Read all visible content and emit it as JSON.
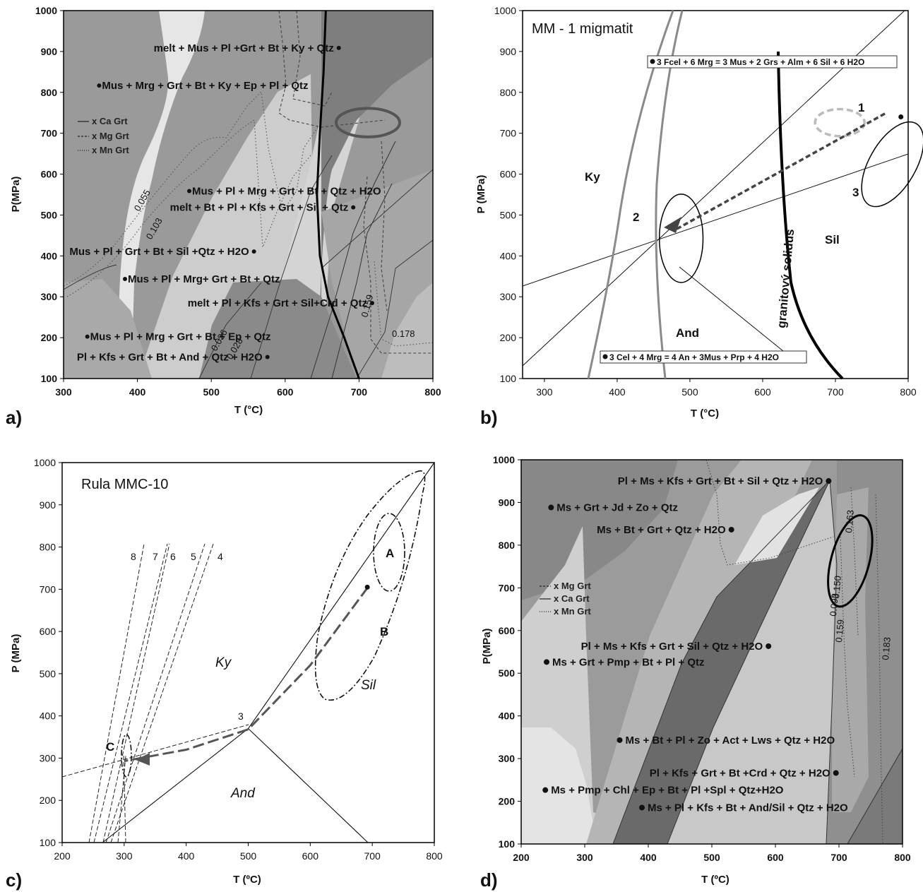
{
  "chart_data": [
    {
      "panel": "a)",
      "type": "pseudosection",
      "xlabel": "T (°C)",
      "ylabel": "P(MPa)",
      "xlim": [
        300,
        800
      ],
      "ylim": [
        100,
        1000
      ],
      "x_ticks": [
        300,
        400,
        500,
        600,
        700,
        800
      ],
      "y_ticks": [
        100,
        200,
        300,
        400,
        500,
        600,
        700,
        800,
        900,
        1000
      ],
      "legend": [
        "x Ca Grt",
        "x Mg Grt",
        "x Mn Grt"
      ],
      "annotations": [
        {
          "text": "melt + Mus + Pl +Grt + Bt + Ky + Qtz",
          "T": 422,
          "P": 900,
          "dot": "right"
        },
        {
          "text": "Mus + Mrg + Grt + Bt + Ky + Ep + Pl + Qtz",
          "T": 352,
          "P": 808,
          "dot": "left"
        },
        {
          "text": "Mus + Pl + Mrg + Grt + Bt + Qtz + H2O",
          "T": 474,
          "P": 550,
          "dot": "left"
        },
        {
          "text": "melt + Bt + Pl + Kfs + Grt + Sil + Qtz",
          "T": 444,
          "P": 510,
          "dot": "right"
        },
        {
          "text": "Mus + Pl + Grt + Bt + Sil +Qtz + H2O",
          "T": 308,
          "P": 402,
          "dot": "right"
        },
        {
          "text": "Mus + Pl + Mrg+ Grt + Bt + Qtz",
          "T": 387,
          "P": 335,
          "dot": "left"
        },
        {
          "text": "melt + Pl + Kfs + Grt + Sil+Crd + Qtz",
          "T": 468,
          "P": 276,
          "dot": "right"
        },
        {
          "text": "Mus + Pl + Mrg + Grt + Bt + Ep + Qtz",
          "T": 336,
          "P": 194,
          "dot": "left"
        },
        {
          "text": "Pl + Kfs + Grt + Bt + And + Qtz + H2O",
          "T": 318,
          "P": 144,
          "dot": "right"
        }
      ],
      "isopleth_labels": [
        "0.055",
        "0.103",
        "0.159",
        "0.178",
        "0.036",
        "0.028"
      ],
      "solidus": [
        [
          655,
          1000
        ],
        [
          652,
          850
        ],
        [
          647,
          700
        ],
        [
          643,
          550
        ],
        [
          647,
          400
        ],
        [
          658,
          300
        ],
        [
          680,
          200
        ],
        [
          700,
          100
        ]
      ],
      "ellipse": {
        "T": 712,
        "P": 726,
        "dT": 43,
        "dP": 35
      }
    },
    {
      "panel": "b)",
      "type": "pt-diagram",
      "title": "MM - 1  migmatit",
      "xlabel": "T (°C)",
      "ylabel": "P (MPa)",
      "xlim": [
        270,
        800
      ],
      "ylim": [
        100,
        1000
      ],
      "x_ticks": [
        300,
        400,
        500,
        600,
        700,
        800
      ],
      "y_ticks": [
        100,
        200,
        300,
        400,
        500,
        600,
        700,
        800,
        900,
        1000
      ],
      "regions": [
        "Ky",
        "Sil",
        "And"
      ],
      "solidus_label": "granitový solidus",
      "reactions": [
        "3 Fcel + 6 Mrg = 3 Mus + 2 Grs + Alm + 6 Sil + 6 H2O",
        "3 Cel + 4 Mrg = 4 An + 3Mus + Prp + 4 H2O"
      ],
      "ellipse_labels": [
        "1",
        "2",
        "3"
      ],
      "ellipses": [
        {
          "id": "2",
          "T": 488,
          "P": 443,
          "dT": 30,
          "dP": 108
        },
        {
          "id": "3",
          "T": 775,
          "P": 640,
          "dT": 32,
          "dP": 115
        },
        {
          "id": "1",
          "T": 706,
          "P": 726,
          "dT": 34,
          "dP": 33,
          "dashed": true
        }
      ],
      "path": [
        [
          768,
          748
        ],
        [
          482,
          466
        ]
      ],
      "point": {
        "T": 790,
        "P": 740
      },
      "aluminosilicate_triple_point": {
        "T": 500,
        "P": 370
      }
    },
    {
      "panel": "c)",
      "type": "pt-diagram",
      "title": "Rula MMC-10",
      "xlabel": "T (ºC)",
      "ylabel": "P (MPa)",
      "xlim": [
        200,
        800
      ],
      "ylim": [
        100,
        1000
      ],
      "x_ticks": [
        200,
        300,
        400,
        500,
        600,
        700,
        800
      ],
      "y_ticks": [
        100,
        200,
        300,
        400,
        500,
        600,
        700,
        800,
        900,
        1000
      ],
      "regions": [
        "Ky",
        "Sil",
        "And"
      ],
      "labels": [
        "A",
        "B",
        "C",
        "3",
        "4",
        "5",
        "6",
        "7",
        "8"
      ],
      "path": [
        [
          693,
          705
        ],
        [
          600,
          520
        ],
        [
          500,
          368
        ],
        [
          400,
          320
        ],
        [
          300,
          293
        ]
      ],
      "point": {
        "T": 692,
        "P": 705
      }
    },
    {
      "panel": "d)",
      "type": "pseudosection",
      "xlabel": "T (ºC)",
      "ylabel": "P(MPa)",
      "xlim": [
        200,
        800
      ],
      "ylim": [
        100,
        1000
      ],
      "x_ticks": [
        200,
        300,
        400,
        500,
        600,
        700,
        800
      ],
      "y_ticks": [
        100,
        200,
        300,
        400,
        500,
        600,
        700,
        800,
        900,
        1000
      ],
      "legend": [
        "x Mg Grt",
        "x Ca Grt",
        "x Mn Grt"
      ],
      "annotations": [
        {
          "text": "Pl + Ms + Kfs + Grt + Bt + Sil + Qtz + H2O",
          "T": 352,
          "P": 942,
          "dot": "right"
        },
        {
          "text": "Ms + Grt + Jd + Zo + Qtz",
          "T": 247,
          "P": 880,
          "dot": "left"
        },
        {
          "text": "Ms + Bt + Grt + Qtz + H2O",
          "T": 319,
          "P": 828,
          "dot": "right"
        },
        {
          "text": "Pl + Ms + Kfs + Grt + Sil + Qtz + H2O",
          "T": 294,
          "P": 555,
          "dot": "right"
        },
        {
          "text": "Ms + Grt + Pmp + Bt + Pl + Qtz",
          "T": 240,
          "P": 518,
          "dot": "left"
        },
        {
          "text": "Ms + Bt + Pl + Zo + Act + Lws + Qtz + H2O",
          "T": 355,
          "P": 335,
          "dot": "left"
        },
        {
          "text": "Pl + Kfs + Grt + Bt +Crd + Qtz + H2O",
          "T": 402,
          "P": 258,
          "dot": "right"
        },
        {
          "text": "Ms + Pmp + Chl + Ep + Bt + Pl +Spl + Qtz+H2O",
          "T": 238,
          "P": 218,
          "dot": "left"
        },
        {
          "text": "Ms + Pl + Kfs + Bt + And/Sil + Qtz + H2O",
          "T": 390,
          "P": 177,
          "dot": "left"
        }
      ],
      "isopleth_labels": [
        "0.163",
        "0.183",
        "0.150",
        "0.093",
        "0.159"
      ],
      "ellipse": {
        "T": 725,
        "P": 760,
        "dT": 30,
        "dP": 110
      }
    }
  ]
}
